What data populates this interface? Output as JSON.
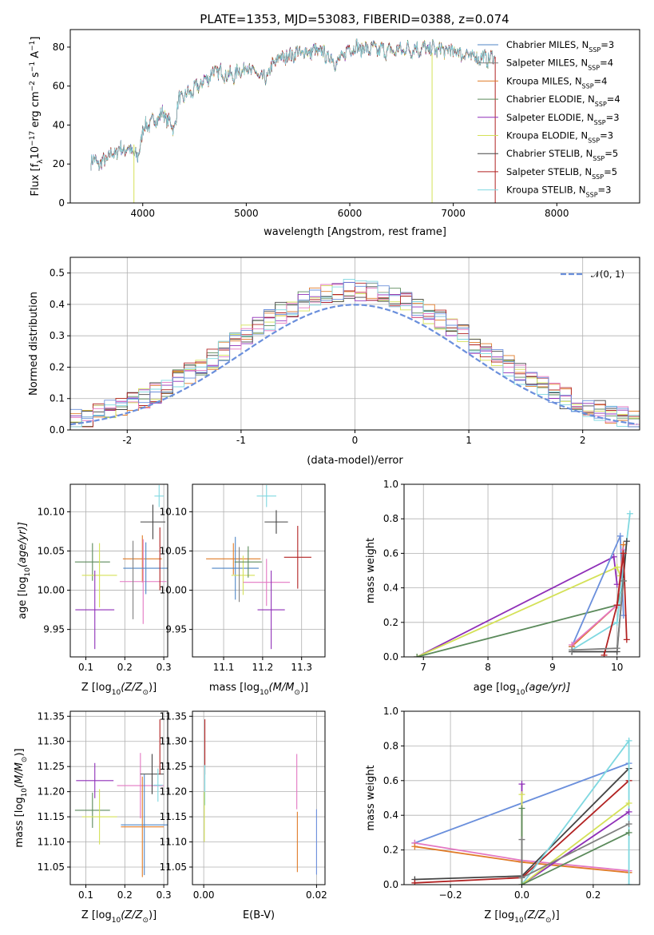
{
  "title": "PLATE=1353, MJD=53083, FIBERID=0388, z=0.074",
  "colors": {
    "Chabrier MILES": "#4f86c6",
    "Salpeter MILES": "#7f7f7f",
    "Kroupa MILES": "#e07b28",
    "Chabrier ELODIE": "#5b8a5b",
    "Salpeter ELODIE": "#8f2fb8",
    "Kroupa ELODIE": "#d4e157",
    "Chabrier STELIB": "#444444",
    "Salpeter STELIB": "#b22222",
    "Kroupa STELIB": "#7fd8e0",
    "pink": "#e377c2",
    "blue2": "#6a8fdc",
    "normal": "#6a8fdc"
  },
  "chart_data": [
    {
      "type": "line",
      "xlabel": "wavelength [Angstrom, rest frame]",
      "ylabel_main": "Flux [f",
      "ylabel_sub": "λ",
      "ylabel_rest": "10",
      "ylabel_exp": "−17",
      "ylabel_unit": " erg cm",
      "ylabel_exp2": "−2",
      "ylabel_s": " s",
      "ylabel_exp3": "−1",
      "ylabel_A": " A",
      "ylabel_exp4": "−1",
      "ylabel_close": "]",
      "xlim": [
        3300,
        8800
      ],
      "ylim": [
        0,
        89
      ],
      "xticks": [
        4000,
        5000,
        6000,
        7000,
        8000
      ],
      "yticks": [
        0,
        20,
        40,
        60,
        80
      ],
      "legend": [
        {
          "name": "Chabrier MILES, N",
          "sub": "SSP",
          "val": "=3"
        },
        {
          "name": "Salpeter MILES, N",
          "sub": "SSP",
          "val": "=4"
        },
        {
          "name": "Kroupa MILES, N",
          "sub": "SSP",
          "val": "=4"
        },
        {
          "name": "Chabrier ELODIE, N",
          "sub": "SSP",
          "val": "=4"
        },
        {
          "name": "Salpeter ELODIE, N",
          "sub": "SSP",
          "val": "=3"
        },
        {
          "name": "Kroupa ELODIE, N",
          "sub": "SSP",
          "val": "=3"
        },
        {
          "name": "Chabrier STELIB, N",
          "sub": "SSP",
          "val": "=5"
        },
        {
          "name": "Salpeter STELIB, N",
          "sub": "SSP",
          "val": "=5"
        },
        {
          "name": "Kroupa STELIB, N",
          "sub": "SSP",
          "val": "=3"
        }
      ],
      "spectrum_knots": [
        [
          3500,
          22
        ],
        [
          3600,
          20
        ],
        [
          3700,
          25
        ],
        [
          3800,
          28
        ],
        [
          3900,
          27
        ],
        [
          3950,
          22
        ],
        [
          4000,
          38
        ],
        [
          4100,
          42
        ],
        [
          4200,
          46
        ],
        [
          4300,
          38
        ],
        [
          4350,
          53
        ],
        [
          4500,
          58
        ],
        [
          4700,
          68
        ],
        [
          4861,
          65
        ],
        [
          5000,
          70
        ],
        [
          5175,
          63
        ],
        [
          5300,
          74
        ],
        [
          5500,
          77
        ],
        [
          5700,
          78
        ],
        [
          5890,
          72
        ],
        [
          6000,
          80
        ],
        [
          6200,
          79
        ],
        [
          6400,
          78
        ],
        [
          6563,
          79
        ],
        [
          6800,
          79
        ],
        [
          7000,
          78
        ],
        [
          7200,
          75
        ],
        [
          7400,
          74
        ]
      ]
    },
    {
      "type": "step",
      "xlabel": "(data-model)/error",
      "ylabel": "Normed distribution",
      "xlim": [
        -2.5,
        2.5
      ],
      "ylim": [
        0,
        0.55
      ],
      "xticks": [
        -2,
        -1,
        0,
        1,
        2
      ],
      "yticks": [
        0.0,
        0.1,
        0.2,
        0.3,
        0.4,
        0.5
      ],
      "legend_label": "𝒩(0, 1)",
      "bin_width": 0.1
    },
    {
      "type": "scatter",
      "xlabel_pre": "Z [log",
      "xlabel_sub": "10",
      "xlabel_post": "(Z/Z",
      "xlabel_sun": "⊙",
      "xlabel_end": ")]",
      "ylabel_pre": "age  [log",
      "ylabel_sub": "10",
      "ylabel_post": "(age/yr)]",
      "xlim": [
        0.06,
        0.31
      ],
      "ylim": [
        9.915,
        10.135
      ],
      "xticks": [
        0.1,
        0.2,
        0.3
      ],
      "yticks": [
        9.95,
        10.0,
        10.05,
        10.1
      ],
      "points": [
        {
          "c": "Chabrier ELODIE",
          "x": 0.117,
          "y": 10.036,
          "xe": 0.045,
          "ye": 0.024
        },
        {
          "c": "Kroupa ELODIE",
          "x": 0.135,
          "y": 10.019,
          "xe": 0.045,
          "ye": 0.041
        },
        {
          "c": "Salpeter ELODIE",
          "x": 0.123,
          "y": 9.975,
          "xe": 0.05,
          "ye": 0.05
        },
        {
          "c": "Kroupa MILES",
          "x": 0.245,
          "y": 10.04,
          "xe": 0.05,
          "ye": 0.03
        },
        {
          "c": "pink",
          "x": 0.247,
          "y": 10.011,
          "xe": 0.06,
          "ye": 0.054
        },
        {
          "c": "Chabrier MILES",
          "x": 0.254,
          "y": 10.028,
          "xe": 0.058,
          "ye": 0.033
        },
        {
          "c": "Salpeter MILES",
          "x": 0.221,
          "y": 10.013,
          "xe": 0.0,
          "ye": 0.05
        },
        {
          "c": "Chabrier STELIB",
          "x": 0.272,
          "y": 10.087,
          "xe": 0.032,
          "ye": 0.022
        },
        {
          "c": "Salpeter STELIB",
          "x": 0.29,
          "y": 10.04,
          "xe": 0.0,
          "ye": 0.04
        },
        {
          "c": "Kroupa STELIB",
          "x": 0.288,
          "y": 10.12,
          "xe": 0.012,
          "ye": 0.014
        }
      ]
    },
    {
      "type": "scatter",
      "xlabel_pre": "mass [log",
      "xlabel_sub": "10",
      "xlabel_post": "(M/M",
      "xlabel_sun": "⊙",
      "xlabel_end": ")]",
      "xlim": [
        11.02,
        11.36
      ],
      "ylim": [
        9.915,
        10.135
      ],
      "xticks": [
        11.1,
        11.2,
        11.3
      ],
      "yticks": [
        9.95,
        10.0,
        10.05,
        10.1
      ],
      "points": [
        {
          "c": "Kroupa MILES",
          "x": 11.125,
          "y": 10.04,
          "xe": 0.07,
          "ye": 0.02
        },
        {
          "c": "Chabrier MILES",
          "x": 11.13,
          "y": 10.028,
          "xe": 0.06,
          "ye": 0.04
        },
        {
          "c": "Kroupa ELODIE",
          "x": 11.15,
          "y": 10.019,
          "xe": 0.03,
          "ye": 0.025
        },
        {
          "c": "Chabrier ELODIE",
          "x": 11.163,
          "y": 10.036,
          "xe": 0.035,
          "ye": 0.02
        },
        {
          "c": "Salpeter MILES",
          "x": 11.14,
          "y": 10.02,
          "xe": 0.0,
          "ye": 0.035
        },
        {
          "c": "pink",
          "x": 11.21,
          "y": 10.01,
          "xe": 0.06,
          "ye": 0.03
        },
        {
          "c": "Salpeter ELODIE",
          "x": 11.222,
          "y": 9.975,
          "xe": 0.035,
          "ye": 0.05
        },
        {
          "c": "Kroupa STELIB",
          "x": 11.21,
          "y": 10.12,
          "xe": 0.025,
          "ye": 0.014
        },
        {
          "c": "Chabrier STELIB",
          "x": 11.235,
          "y": 10.087,
          "xe": 0.03,
          "ye": 0.015
        },
        {
          "c": "Salpeter STELIB",
          "x": 11.29,
          "y": 10.042,
          "xe": 0.035,
          "ye": 0.04
        }
      ]
    },
    {
      "type": "line",
      "xlabel_pre": "age  [log",
      "xlabel_sub": "10",
      "xlabel_post": "(age/yr)]",
      "ylabel": "mass weight",
      "xlim": [
        6.7,
        10.35
      ],
      "ylim": [
        0,
        1.0
      ],
      "xticks": [
        7,
        8,
        9,
        10
      ],
      "yticks": [
        0.0,
        0.2,
        0.4,
        0.6,
        0.8,
        1.0
      ],
      "series": [
        {
          "c": "Salpeter ELODIE",
          "x": [
            6.9,
            9.95,
            10.0
          ],
          "y": [
            0.0,
            0.58,
            0.42
          ]
        },
        {
          "c": "Kroupa ELODIE",
          "x": [
            6.9,
            10.0,
            10.05
          ],
          "y": [
            0.0,
            0.52,
            0.47
          ]
        },
        {
          "c": "Chabrier ELODIE",
          "x": [
            6.9,
            10.0,
            10.1
          ],
          "y": [
            0.0,
            0.3,
            0.44
          ]
        },
        {
          "c": "blue2",
          "x": [
            9.3,
            10.05,
            10.1
          ],
          "y": [
            0.06,
            0.7,
            0.24
          ]
        },
        {
          "c": "Kroupa MILES",
          "x": [
            9.3,
            10.0,
            10.1
          ],
          "y": [
            0.06,
            0.3,
            0.65
          ]
        },
        {
          "c": "pink",
          "x": [
            9.3,
            10.0,
            10.1
          ],
          "y": [
            0.07,
            0.3,
            0.62
          ]
        },
        {
          "c": "Kroupa STELIB",
          "x": [
            9.3,
            10.0,
            10.2
          ],
          "y": [
            0.04,
            0.2,
            0.83
          ]
        },
        {
          "c": "Chabrier STELIB",
          "x": [
            9.3,
            10.0,
            10.15
          ],
          "y": [
            0.03,
            0.03,
            0.67
          ]
        },
        {
          "c": "Salpeter STELIB",
          "x": [
            9.8,
            10.0,
            10.1,
            10.15
          ],
          "y": [
            0.01,
            0.3,
            0.6,
            0.1
          ]
        },
        {
          "c": "Salpeter MILES",
          "x": [
            9.3,
            10.0,
            10.1
          ],
          "y": [
            0.04,
            0.05,
            0.44
          ]
        }
      ]
    },
    {
      "type": "scatter",
      "xlabel_pre": "Z [log",
      "xlabel_sub": "10",
      "xlabel_post": "(Z/Z",
      "xlabel_sun": "⊙",
      "xlabel_end": ")]",
      "ylabel_pre": "mass [log",
      "ylabel_sub": "10",
      "ylabel_post": "(M/M",
      "ylabel_sun": "⊙",
      "ylabel_end": ")]",
      "xlim": [
        0.06,
        0.31
      ],
      "ylim": [
        11.015,
        11.36
      ],
      "xticks": [
        0.1,
        0.2,
        0.3
      ],
      "yticks": [
        11.05,
        11.1,
        11.15,
        11.2,
        11.25,
        11.3,
        11.35
      ],
      "points": [
        {
          "c": "Salpeter ELODIE",
          "x": 0.123,
          "y": 11.222,
          "xe": 0.048,
          "ye": 0.035
        },
        {
          "c": "Chabrier ELODIE",
          "x": 0.117,
          "y": 11.163,
          "xe": 0.045,
          "ye": 0.035
        },
        {
          "c": "Kroupa ELODIE",
          "x": 0.135,
          "y": 11.15,
          "xe": 0.045,
          "ye": 0.055
        },
        {
          "c": "pink",
          "x": 0.24,
          "y": 11.212,
          "xe": 0.06,
          "ye": 0.065
        },
        {
          "c": "Chabrier MILES",
          "x": 0.25,
          "y": 11.134,
          "xe": 0.06,
          "ye": 0.1
        },
        {
          "c": "Kroupa MILES",
          "x": 0.245,
          "y": 11.13,
          "xe": 0.055,
          "ye": 0.1
        },
        {
          "c": "Chabrier STELIB",
          "x": 0.27,
          "y": 11.235,
          "xe": 0.03,
          "ye": 0.04
        },
        {
          "c": "Salpeter STELIB",
          "x": 0.29,
          "y": 11.289,
          "xe": 0.0,
          "ye": 0.055
        },
        {
          "c": "Kroupa STELIB",
          "x": 0.285,
          "y": 11.213,
          "xe": 0.012,
          "ye": 0.033
        }
      ]
    },
    {
      "type": "scatter",
      "xlabel": "E(B-V)",
      "xlim": [
        -0.002,
        0.0215
      ],
      "ylim": [
        11.015,
        11.36
      ],
      "xticks": [
        0.0,
        0.02
      ],
      "xticklabels": [
        "0.00",
        "0.02"
      ],
      "yticks": [
        11.05,
        11.1,
        11.15,
        11.2,
        11.25,
        11.3,
        11.35
      ],
      "points": [
        {
          "c": "Salpeter STELIB",
          "x": 0.0002,
          "y": 11.289,
          "xe": 0,
          "ye": 0.055
        },
        {
          "c": "Kroupa STELIB",
          "x": 0.0002,
          "y": 11.213,
          "xe": 0,
          "ye": 0.04
        },
        {
          "c": "Kroupa ELODIE",
          "x": 0.0001,
          "y": 11.15,
          "xe": 0,
          "ye": 0.05
        },
        {
          "c": "pink",
          "x": 0.0165,
          "y": 11.22,
          "xe": 0,
          "ye": 0.055
        },
        {
          "c": "Kroupa MILES",
          "x": 0.0166,
          "y": 11.1,
          "xe": 0,
          "ye": 0.06
        },
        {
          "c": "blue2",
          "x": 0.02,
          "y": 11.1,
          "xe": 0,
          "ye": 0.065
        }
      ]
    },
    {
      "type": "line",
      "xlabel_pre": "Z [log",
      "xlabel_sub": "10",
      "xlabel_post": "(Z/Z",
      "xlabel_sun": "⊙",
      "xlabel_end": ")]",
      "ylabel": "mass weight",
      "xlim": [
        -0.33,
        0.33
      ],
      "ylim": [
        0,
        1.0
      ],
      "xticks": [
        -0.2,
        0.0,
        0.2
      ],
      "xticklabels": [
        "−0.2",
        "0.0",
        "0.2"
      ],
      "yticks": [
        0.0,
        0.2,
        0.4,
        0.6,
        0.8,
        1.0
      ],
      "series": [
        {
          "c": "blue2",
          "x": [
            -0.3,
            0.3
          ],
          "y": [
            0.24,
            0.7
          ]
        },
        {
          "c": "pink",
          "x": [
            -0.3,
            0.0,
            0.3
          ],
          "y": [
            0.24,
            0.14,
            0.08
          ]
        },
        {
          "c": "Kroupa MILES",
          "x": [
            -0.3,
            0.0,
            0.3
          ],
          "y": [
            0.22,
            0.13,
            0.07
          ]
        },
        {
          "c": "Chabrier STELIB",
          "x": [
            -0.3,
            0.0,
            0.3
          ],
          "y": [
            0.03,
            0.05,
            0.67
          ]
        },
        {
          "c": "Salpeter STELIB",
          "x": [
            -0.3,
            0.0,
            0.3
          ],
          "y": [
            0.01,
            0.04,
            0.6
          ]
        },
        {
          "c": "Kroupa STELIB",
          "x": [
            0.0,
            0.3,
            0.3
          ],
          "y": [
            0.0,
            0.83,
            0.0
          ]
        },
        {
          "c": "Salpeter ELODIE",
          "x": [
            0.0,
            0.0,
            0.3
          ],
          "y": [
            0.58,
            0.0,
            0.42
          ]
        },
        {
          "c": "Kroupa ELODIE",
          "x": [
            0.0,
            0.0,
            0.3
          ],
          "y": [
            0.52,
            0.0,
            0.47
          ]
        },
        {
          "c": "Chabrier ELODIE",
          "x": [
            0.0,
            0.0,
            0.3
          ],
          "y": [
            0.44,
            0.0,
            0.3
          ]
        },
        {
          "c": "Salpeter MILES",
          "x": [
            0.0,
            0.0,
            0.3
          ],
          "y": [
            0.26,
            0.04,
            0.35
          ]
        }
      ]
    }
  ]
}
